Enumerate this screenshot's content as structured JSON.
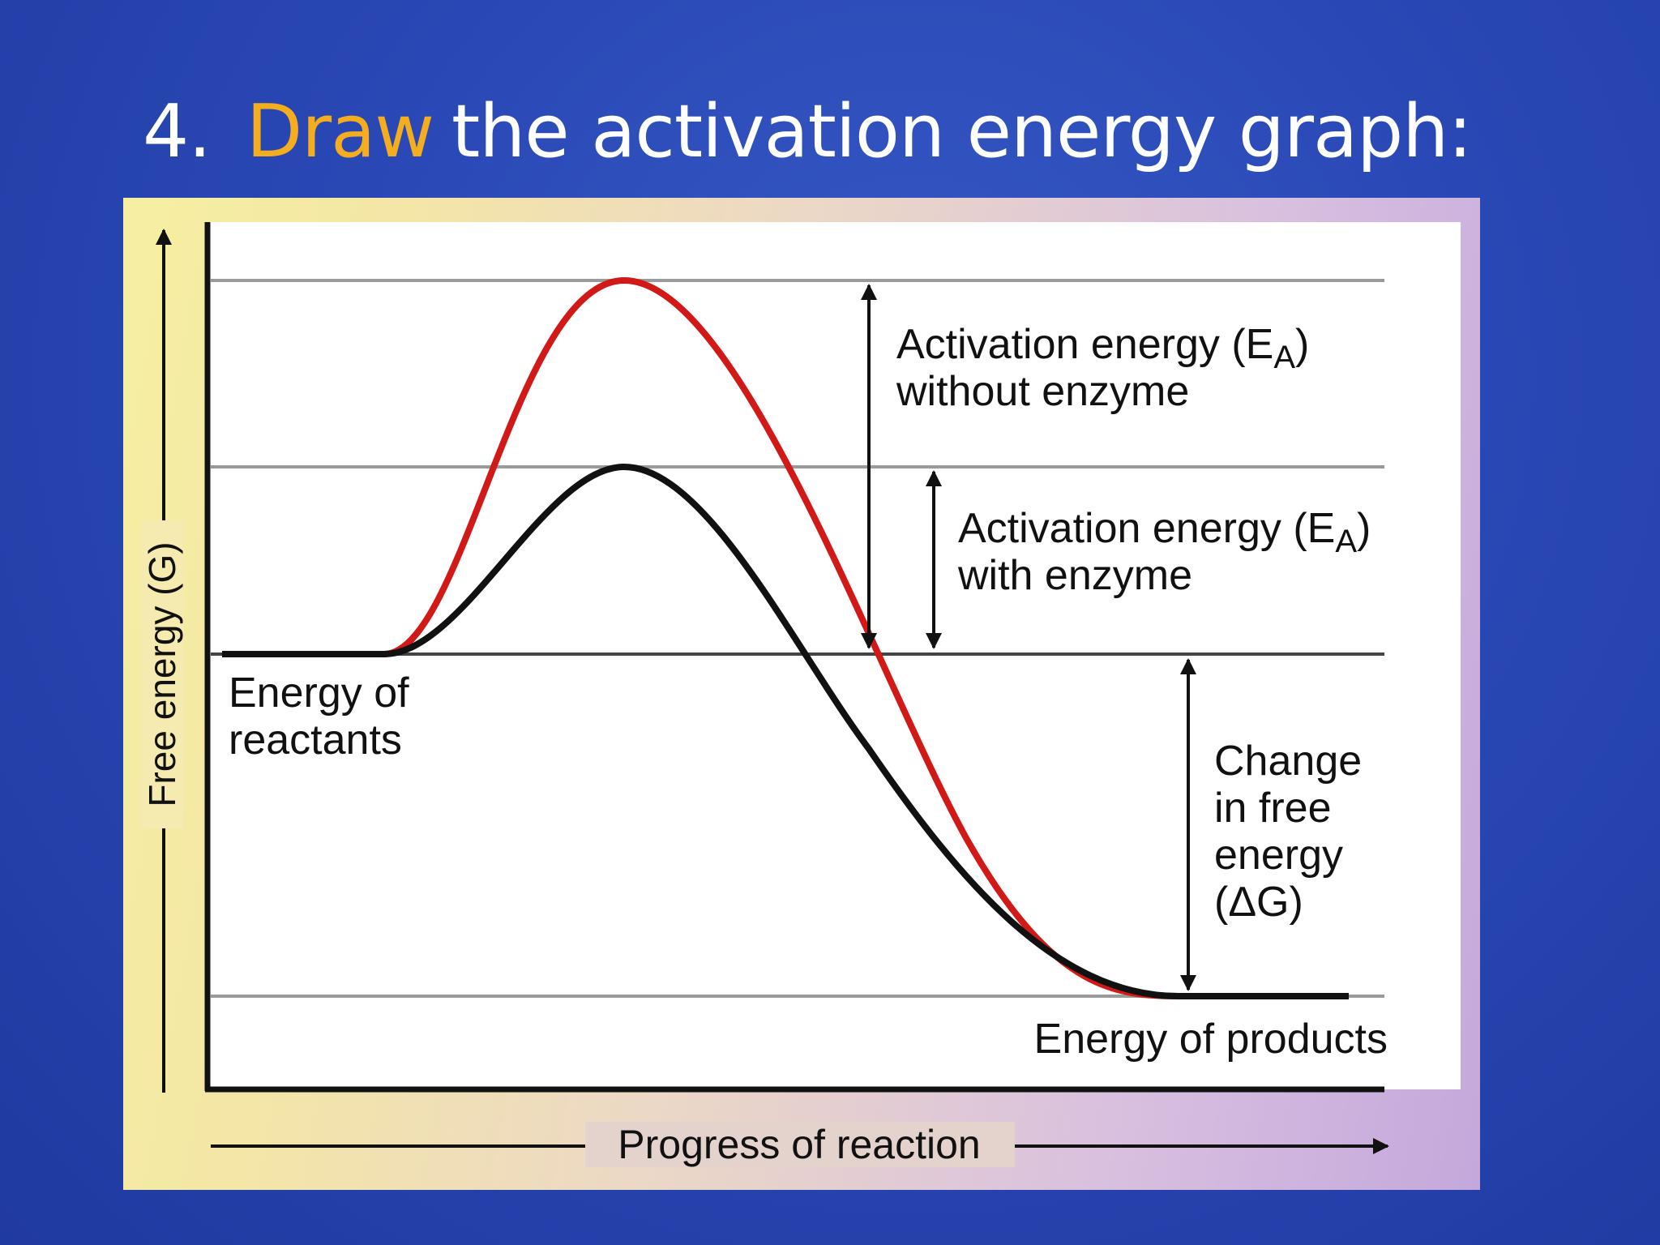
{
  "slide": {
    "title_number": "4.",
    "title_accent": "Draw",
    "title_rest": "the activation energy graph:",
    "accent_color": "#f3ad1f"
  },
  "diagram": {
    "y_axis_label": "Free energy (G)",
    "x_axis_label": "Progress of reaction",
    "label_reactants": [
      "Energy of",
      "reactants"
    ],
    "label_products": "Energy of products",
    "label_ea_without": {
      "line1_prefix": "Activation energy (E",
      "subscript": "A",
      "line1_suffix": ")",
      "line2": "without enzyme"
    },
    "label_ea_with": {
      "line1_prefix": "Activation energy (E",
      "subscript": "A",
      "line1_suffix": ")",
      "line2": "with enzyme"
    },
    "label_delta_g": [
      "Change",
      "in free",
      "energy",
      "(ΔG)"
    ],
    "curve_without_enzyme_color": "#d11a17",
    "curve_with_enzyme_color": "#111111"
  }
}
